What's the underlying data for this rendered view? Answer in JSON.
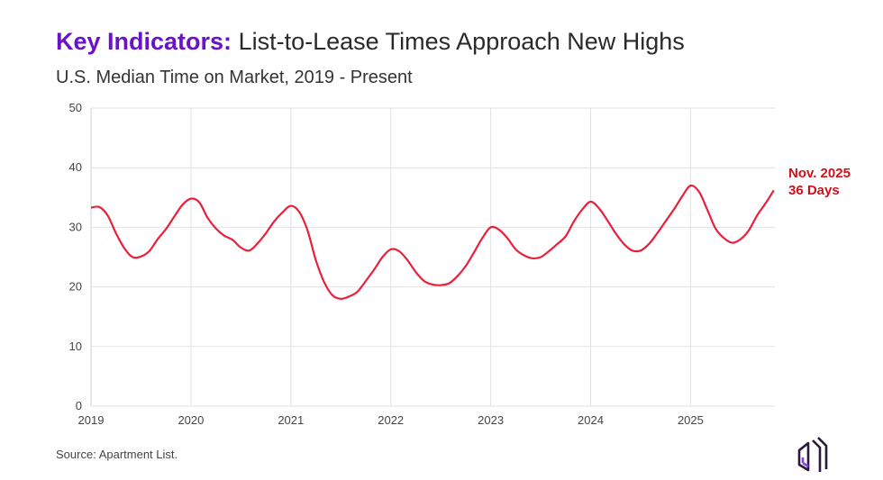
{
  "header": {
    "title_keyword": "Key Indicators:",
    "title_rest": " List-to-Lease Times Approach New Highs",
    "subtitle": "U.S. Median Time on Market, 2019 - Present"
  },
  "source": "Source: Apartment List.",
  "annotation": {
    "line1": "Nov. 2025",
    "line2": "36 Days"
  },
  "colors": {
    "line": "#e8203c",
    "accent": "#6a12c9",
    "annotation": "#d0101c",
    "grid": "#e2e2e2"
  },
  "chart_data": {
    "type": "line",
    "title": "",
    "xlabel": "",
    "ylabel": "",
    "ylim": [
      0,
      50
    ],
    "yticks": [
      "0",
      "10",
      "20",
      "30",
      "40",
      "50"
    ],
    "xticks": [
      "2019",
      "2020",
      "2021",
      "2022",
      "2023",
      "2024",
      "2025"
    ],
    "grid": true,
    "x_start": "2019-01",
    "frequency": "monthly",
    "series": [
      {
        "values": [
          33.3,
          33.4,
          32,
          29,
          26.5,
          25,
          25.1,
          26,
          28,
          29.7,
          31.8,
          33.8,
          34.8,
          34.2,
          31.6,
          29.8,
          28.6,
          27.9,
          26.6,
          26.1,
          27.3,
          29,
          31,
          32.5,
          33.6,
          32.6,
          29.5,
          24.5,
          20.8,
          18.6,
          18,
          18.4,
          19.2,
          21,
          22.9,
          25,
          26.3,
          26,
          24.5,
          22.5,
          21,
          20.4,
          20.3,
          20.6,
          21.8,
          23.5,
          25.8,
          28.2,
          30,
          29.6,
          28.2,
          26.3,
          25.3,
          24.8,
          25,
          26,
          27.2,
          28.5,
          31,
          33,
          34.3,
          33.2,
          31.2,
          29,
          27.2,
          26.1,
          26.1,
          27.2,
          29,
          31,
          33,
          35.2,
          37,
          36,
          33,
          29.8,
          28.2,
          27.4,
          28,
          29.5,
          32,
          34,
          36.2
        ]
      }
    ]
  }
}
